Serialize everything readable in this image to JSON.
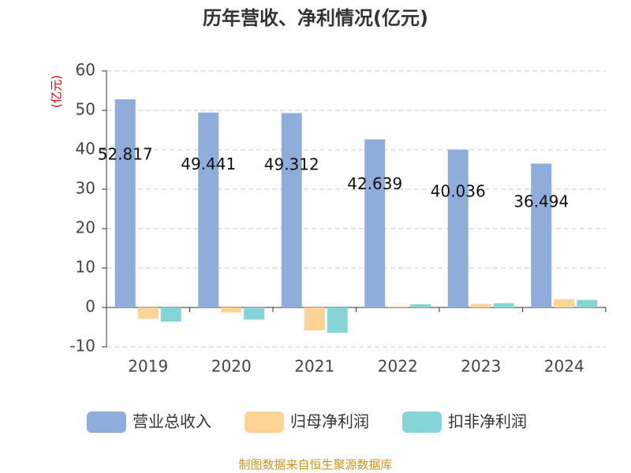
{
  "chart_data": {
    "type": "bar",
    "title": "历年营收、净利情况(亿元)",
    "y_label": "(亿元)",
    "source": "制图数据来自恒生聚源数据库",
    "categories": [
      "2019",
      "2020",
      "2021",
      "2022",
      "2023",
      "2024"
    ],
    "series": [
      {
        "name": "营业总收入",
        "color": "#8eadda",
        "values": [
          52.817,
          49.441,
          49.312,
          42.639,
          40.036,
          36.494
        ],
        "show_labels": true
      },
      {
        "name": "归母净利润",
        "color": "#fdd496",
        "values": [
          -2.9,
          -1.3,
          -5.8,
          0.3,
          0.9,
          2.1
        ],
        "show_labels": false
      },
      {
        "name": "扣非净利润",
        "color": "#86d5d6",
        "values": [
          -3.6,
          -3.1,
          -6.4,
          0.8,
          1.1,
          1.9
        ],
        "show_labels": false
      }
    ],
    "ylim": [
      -10,
      60
    ],
    "yticks": [
      -10,
      0,
      10,
      20,
      30,
      40,
      50,
      60
    ],
    "grid": true,
    "legend": "bottom"
  }
}
